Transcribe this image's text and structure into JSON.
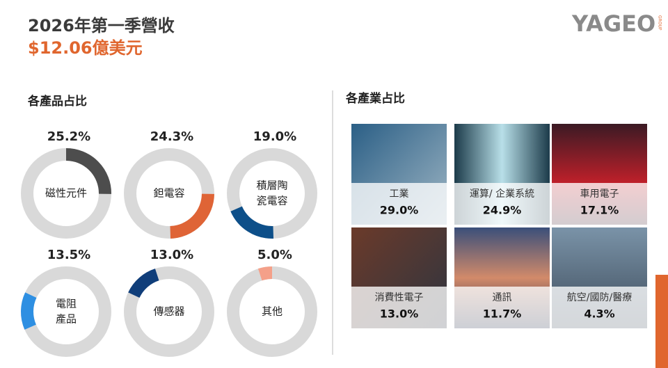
{
  "header": {
    "title": "2026年第一季營收",
    "revenue": "$12.06億美元",
    "logo": "YAGEO",
    "logo_sub": "GROUP"
  },
  "products": {
    "title": "各產品占比",
    "items": [
      {
        "label": [
          "磁性元件"
        ],
        "value": 25.2,
        "value_label": "25.2%",
        "color": "#4d4d4d"
      },
      {
        "label": [
          "鉭電容"
        ],
        "value": 24.3,
        "value_label": "24.3%",
        "color": "#df6436"
      },
      {
        "label": [
          "積層陶",
          "瓷電容"
        ],
        "value": 19.0,
        "value_label": "19.0%",
        "color": "#0d4f89"
      },
      {
        "label": [
          "電阻",
          "產品"
        ],
        "value": 13.5,
        "value_label": "13.5%",
        "color": "#2e8fe2"
      },
      {
        "label": [
          "傳感器"
        ],
        "value": 13.0,
        "value_label": "13.0%",
        "color": "#103e7a"
      },
      {
        "label": [
          "其他"
        ],
        "value": 5.0,
        "value_label": "5.0%",
        "color": "#f4a089"
      }
    ]
  },
  "industries": {
    "title": "各產業占比",
    "items": [
      {
        "label": "工業",
        "share": "29.0%"
      },
      {
        "label": "運算/ 企業系統",
        "share": "24.9%"
      },
      {
        "label": "車用電子",
        "share": "17.1%"
      },
      {
        "label": "消費性電子",
        "share": "13.0%"
      },
      {
        "label": "通訊",
        "share": "11.7%"
      },
      {
        "label": "航空/國防/醫療",
        "share": "4.3%"
      }
    ]
  }
}
